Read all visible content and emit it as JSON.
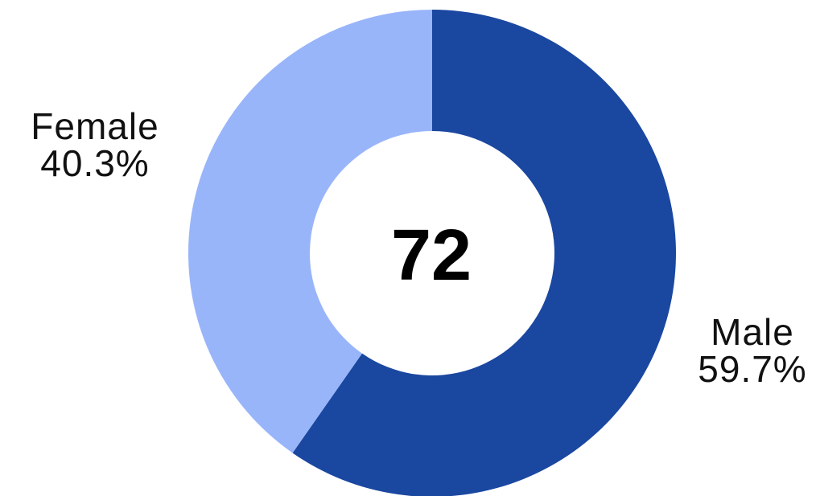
{
  "chart_data": {
    "type": "pie",
    "donut": true,
    "center_text": "72",
    "slices": [
      {
        "name": "Male",
        "value": 59.7,
        "label": "59.7%",
        "color": "#1a47a0"
      },
      {
        "name": "Female",
        "value": 40.3,
        "label": "40.3%",
        "color": "#99b5fa"
      }
    ],
    "start_angle_deg": 0,
    "direction": "clockwise"
  }
}
